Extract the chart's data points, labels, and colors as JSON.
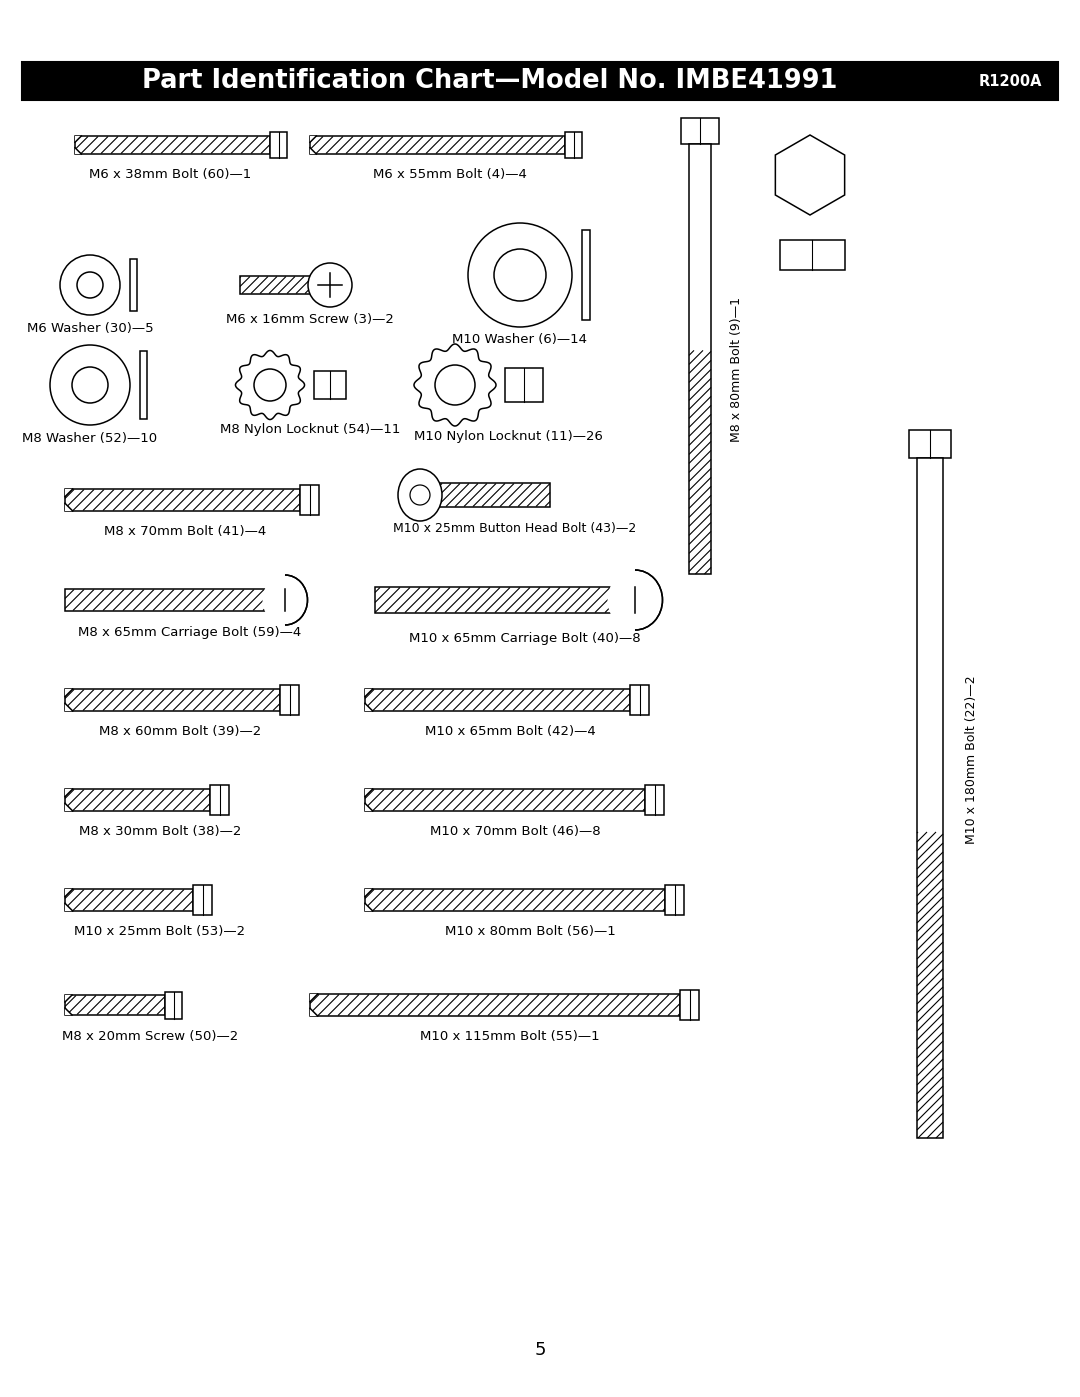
{
  "title_main": "Part Identification Chart—Model No. IMBE41991",
  "title_right": "R1200A",
  "bg": "#ffffff",
  "title_bg": "#000000",
  "title_fg": "#ffffff",
  "fg": "#000000",
  "page": "5",
  "lw": 1.1
}
